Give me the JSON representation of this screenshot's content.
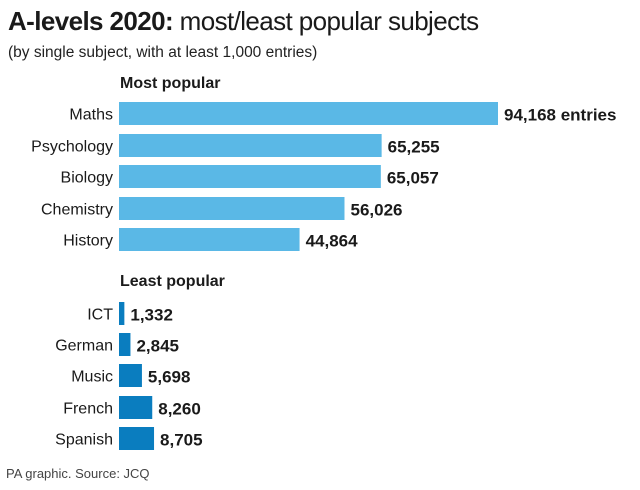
{
  "title": {
    "bold": "A-levels 2020:",
    "rest": " most/least popular subjects"
  },
  "subtitle": "(by single subject, with at least 1,000 entries)",
  "source": "PA graphic. Source: JCQ",
  "colors": {
    "most_popular_bar": "#5ab8e6",
    "least_popular_bar": "#0a7dbf",
    "text": "#1a1a1a"
  },
  "chart_data": [
    {
      "type": "bar",
      "orientation": "horizontal",
      "title": "Most popular",
      "xlabel": "",
      "ylabel": "",
      "value_suffix_first": " entries",
      "categories": [
        "Maths",
        "Psychology",
        "Biology",
        "Chemistry",
        "History"
      ],
      "values": [
        94168,
        65255,
        65057,
        56026,
        44864
      ],
      "value_labels": [
        "94,168 entries",
        "65,255",
        "65,057",
        "56,026",
        "44,864"
      ],
      "xlim": [
        0,
        100000
      ],
      "grid": false
    },
    {
      "type": "bar",
      "orientation": "horizontal",
      "title": "Least popular",
      "xlabel": "",
      "ylabel": "",
      "categories": [
        "ICT",
        "German",
        "Music",
        "French",
        "Spanish"
      ],
      "values": [
        1332,
        2845,
        5698,
        8260,
        8705
      ],
      "value_labels": [
        "1,332",
        "2,845",
        "5,698",
        "8,260",
        "8,705"
      ],
      "xlim": [
        0,
        100000
      ],
      "grid": false
    }
  ]
}
